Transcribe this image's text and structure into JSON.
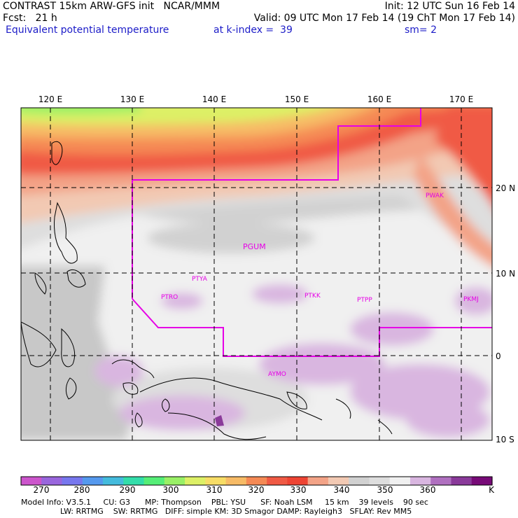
{
  "header": {
    "line1_left": "CONTRAST 15km ARW-GFS init   NCAR/MMM",
    "line1_right": "Init: 12 UTC Sun 16 Feb 14",
    "line2_left": "Fcst:   21 h",
    "line2_right": "Valid: 09 UTC Mon 17 Feb 14 (19 ChT Mon 17 Feb 14)",
    "line3_field": "Equivalent potential temperature",
    "line3_level": "at k-index =  39",
    "line3_sm": "sm= 2"
  },
  "map": {
    "lon_labels": [
      "120 E",
      "130 E",
      "140 E",
      "150 E",
      "160 E",
      "170 E"
    ],
    "lat_labels": [
      "20 N",
      "10 N",
      "0",
      "10 S"
    ],
    "stations": [
      "PWAK",
      "PGUM",
      "PTYA",
      "PTRO",
      "PTKK",
      "PTPP",
      "PKMJ",
      "AYMO"
    ]
  },
  "colorbar": {
    "colors": [
      "#cc55cc",
      "#9966dd",
      "#7777ee",
      "#5599ee",
      "#44bbdd",
      "#33ddaa",
      "#55ee77",
      "#99f066",
      "#ddf066",
      "#f7dd66",
      "#f7bb66",
      "#f58a55",
      "#f05a44",
      "#ee4433",
      "#f3a387",
      "#f2c9b3",
      "#d1d1d1",
      "#dedede",
      "#f0f0f0",
      "#d9b6e0",
      "#b070c0",
      "#8a3a9a",
      "#770a77"
    ],
    "labels": [
      "270",
      "280",
      "290",
      "300",
      "310",
      "320",
      "330",
      "340",
      "350",
      "360"
    ],
    "unit": "K"
  },
  "footer": {
    "line1": "Model Info: V3.5.1     CU: G3      MP: Thompson    PBL: YSU      SF: Noah LSM     15 km    39 levels    90 sec",
    "line2": "                LW: RRTMG    SW: RRTMG   DIFF: simple KM: 3D Smagor DAMP: Rayleigh3   SFLAY: Rev MM5"
  }
}
